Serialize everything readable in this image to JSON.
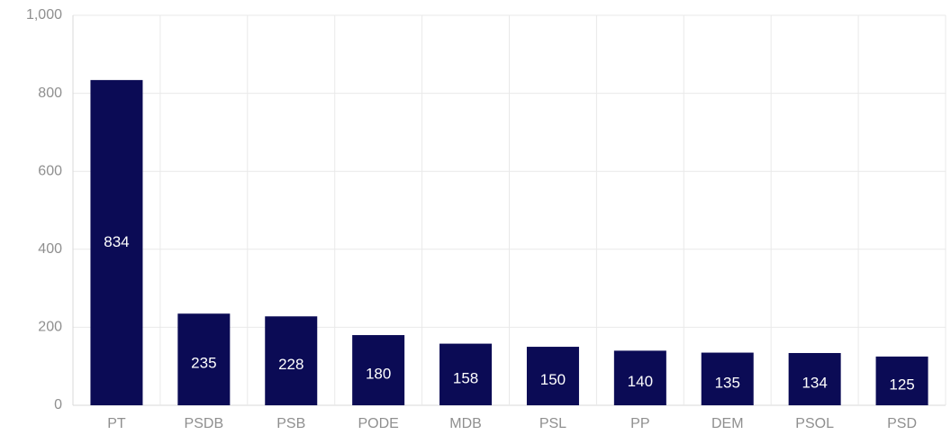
{
  "chart_data": {
    "type": "bar",
    "title": "",
    "xlabel": "",
    "ylabel": "",
    "categories": [
      "PT",
      "PSDB",
      "PSB",
      "PODE",
      "MDB",
      "PSL",
      "PP",
      "DEM",
      "PSOL",
      "PSD"
    ],
    "values": [
      834,
      235,
      228,
      180,
      158,
      150,
      140,
      135,
      134,
      125
    ],
    "data_labels": [
      "834",
      "235",
      "228",
      "180",
      "158",
      "150",
      "140",
      "135",
      "134",
      "125"
    ],
    "ylim": [
      0,
      1000
    ],
    "y_ticks": [
      0,
      200,
      400,
      600,
      800,
      1000
    ],
    "y_tick_labels": [
      "0",
      "200",
      "400",
      "600",
      "800",
      "1,000"
    ],
    "grid": true,
    "legend": "none",
    "bar_color": "#0b0b55"
  }
}
